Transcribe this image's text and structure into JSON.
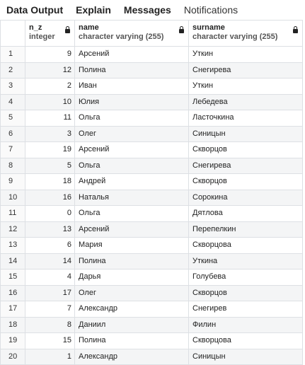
{
  "tabs": [
    {
      "label": "Data Output"
    },
    {
      "label": "Explain"
    },
    {
      "label": "Messages"
    },
    {
      "label": "Notifications"
    }
  ],
  "columns": [
    {
      "name": "n_z",
      "type": "integer"
    },
    {
      "name": "name",
      "type": "character varying (255)"
    },
    {
      "name": "surname",
      "type": "character varying (255)"
    }
  ],
  "rows": [
    {
      "num": "1",
      "n_z": "9",
      "name": "Арсений",
      "surname": "Уткин"
    },
    {
      "num": "2",
      "n_z": "12",
      "name": "Полина",
      "surname": "Снегирева"
    },
    {
      "num": "3",
      "n_z": "2",
      "name": "Иван",
      "surname": "Уткин"
    },
    {
      "num": "4",
      "n_z": "10",
      "name": "Юлия",
      "surname": "Лебедева"
    },
    {
      "num": "5",
      "n_z": "11",
      "name": "Ольга",
      "surname": "Ласточкина"
    },
    {
      "num": "6",
      "n_z": "3",
      "name": "Олег",
      "surname": "Синицын"
    },
    {
      "num": "7",
      "n_z": "19",
      "name": "Арсений",
      "surname": "Скворцов"
    },
    {
      "num": "8",
      "n_z": "5",
      "name": "Ольга",
      "surname": "Снегирева"
    },
    {
      "num": "9",
      "n_z": "18",
      "name": "Андрей",
      "surname": "Скворцов"
    },
    {
      "num": "10",
      "n_z": "16",
      "name": "Наталья",
      "surname": "Сорокина"
    },
    {
      "num": "11",
      "n_z": "0",
      "name": "Ольга",
      "surname": "Дятлова"
    },
    {
      "num": "12",
      "n_z": "13",
      "name": "Арсений",
      "surname": "Перепелкин"
    },
    {
      "num": "13",
      "n_z": "6",
      "name": "Мария",
      "surname": "Скворцова"
    },
    {
      "num": "14",
      "n_z": "14",
      "name": "Полина",
      "surname": "Уткина"
    },
    {
      "num": "15",
      "n_z": "4",
      "name": "Дарья",
      "surname": "Голубева"
    },
    {
      "num": "16",
      "n_z": "17",
      "name": "Олег",
      "surname": "Скворцов"
    },
    {
      "num": "17",
      "n_z": "7",
      "name": "Александр",
      "surname": "Снегирев"
    },
    {
      "num": "18",
      "n_z": "8",
      "name": "Даниил",
      "surname": "Филин"
    },
    {
      "num": "19",
      "n_z": "15",
      "name": "Полина",
      "surname": "Скворцова"
    },
    {
      "num": "20",
      "n_z": "1",
      "name": "Александр",
      "surname": "Синицын"
    }
  ]
}
